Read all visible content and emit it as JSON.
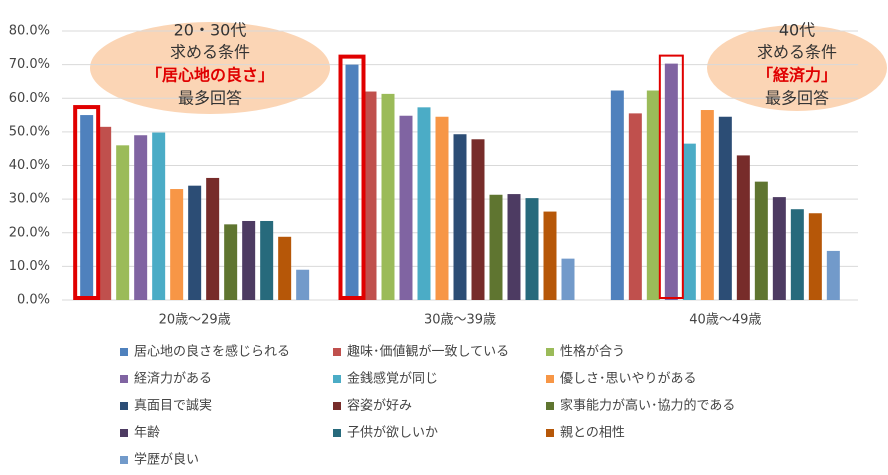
{
  "chart_data": {
    "type": "bar",
    "categories": [
      "20歳～29歳",
      "30歳～39歳",
      "40歳～49歳"
    ],
    "series": [
      {
        "name": "居心地の良さを感じられる",
        "color": "#4f81bd",
        "values": [
          55.0,
          70.0,
          62.3
        ]
      },
      {
        "name": "趣味･価値観が一致している",
        "color": "#c0504d",
        "values": [
          51.5,
          62.0,
          55.5
        ]
      },
      {
        "name": "性格が合う",
        "color": "#9bbb59",
        "values": [
          46.0,
          61.3,
          62.3
        ]
      },
      {
        "name": "経済力がある",
        "color": "#8064a2",
        "values": [
          49.0,
          54.8,
          70.3
        ]
      },
      {
        "name": "金銭感覚が同じ",
        "color": "#4bacc6",
        "values": [
          49.8,
          57.3,
          46.5
        ]
      },
      {
        "name": "優しさ･思いやりがある",
        "color": "#f79646",
        "values": [
          33.0,
          54.5,
          56.5
        ]
      },
      {
        "name": "真面目で誠実",
        "color": "#2c4d75",
        "values": [
          34.0,
          49.3,
          54.5
        ]
      },
      {
        "name": "容姿が好み",
        "color": "#772c2a",
        "values": [
          36.3,
          47.8,
          43.0
        ]
      },
      {
        "name": "家事能力が高い･協力的である",
        "color": "#5f7530",
        "values": [
          22.5,
          31.3,
          35.2
        ]
      },
      {
        "name": "年齢",
        "color": "#4d3b62",
        "values": [
          23.5,
          31.5,
          30.6
        ]
      },
      {
        "name": "子供が欲しいか",
        "color": "#276a7c",
        "values": [
          23.5,
          30.3,
          27.0
        ]
      },
      {
        "name": "親との相性",
        "color": "#b65708",
        "values": [
          18.8,
          26.3,
          25.8
        ]
      },
      {
        "name": "学歴が良い",
        "color": "#729aca",
        "values": [
          9.0,
          12.3,
          14.6
        ]
      }
    ],
    "ylim": [
      0,
      80
    ],
    "yticks": [
      {
        "value": 0,
        "label": "0.0%"
      },
      {
        "value": 10,
        "label": "10.0%"
      },
      {
        "value": 20,
        "label": "20.0%"
      },
      {
        "value": 30,
        "label": "30.0%"
      },
      {
        "value": 40,
        "label": "40.0%"
      },
      {
        "value": 50,
        "label": "50.0%"
      },
      {
        "value": 60,
        "label": "60.0%"
      },
      {
        "value": 70,
        "label": "70.0%"
      },
      {
        "value": 80,
        "label": "80.0%"
      }
    ],
    "grid": true,
    "annotations": [
      {
        "lines": [
          "20・30代",
          "求める条件",
          "「居心地の良さ」",
          "最多回答"
        ]
      },
      {
        "lines": [
          "40代",
          "求める条件",
          "「経済力」",
          "最多回答"
        ]
      }
    ]
  }
}
